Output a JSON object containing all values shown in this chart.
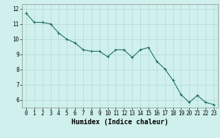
{
  "x": [
    0,
    1,
    2,
    3,
    4,
    5,
    6,
    7,
    8,
    9,
    10,
    11,
    12,
    13,
    14,
    15,
    16,
    17,
    18,
    19,
    20,
    21,
    22,
    23
  ],
  "y": [
    11.7,
    11.1,
    11.1,
    11.0,
    10.4,
    10.0,
    9.75,
    9.3,
    9.2,
    9.2,
    8.85,
    9.3,
    9.3,
    8.8,
    9.3,
    9.45,
    8.55,
    8.05,
    7.3,
    6.35,
    5.85,
    6.3,
    5.85,
    5.7
  ],
  "line_color": "#1a6b5e",
  "marker": "+",
  "marker_size": 3,
  "linewidth": 0.8,
  "xlabel": "Humidex (Indice chaleur)",
  "xlim": [
    -0.5,
    23.5
  ],
  "ylim": [
    5.5,
    12.3
  ],
  "yticks": [
    6,
    7,
    8,
    9,
    10,
    11,
    12
  ],
  "xticks": [
    0,
    1,
    2,
    3,
    4,
    5,
    6,
    7,
    8,
    9,
    10,
    11,
    12,
    13,
    14,
    15,
    16,
    17,
    18,
    19,
    20,
    21,
    22,
    23
  ],
  "bg_color": "#cff0ec",
  "grid_color": "#b0d8d4",
  "xlabel_fontsize": 7,
  "tick_fontsize": 5.5
}
